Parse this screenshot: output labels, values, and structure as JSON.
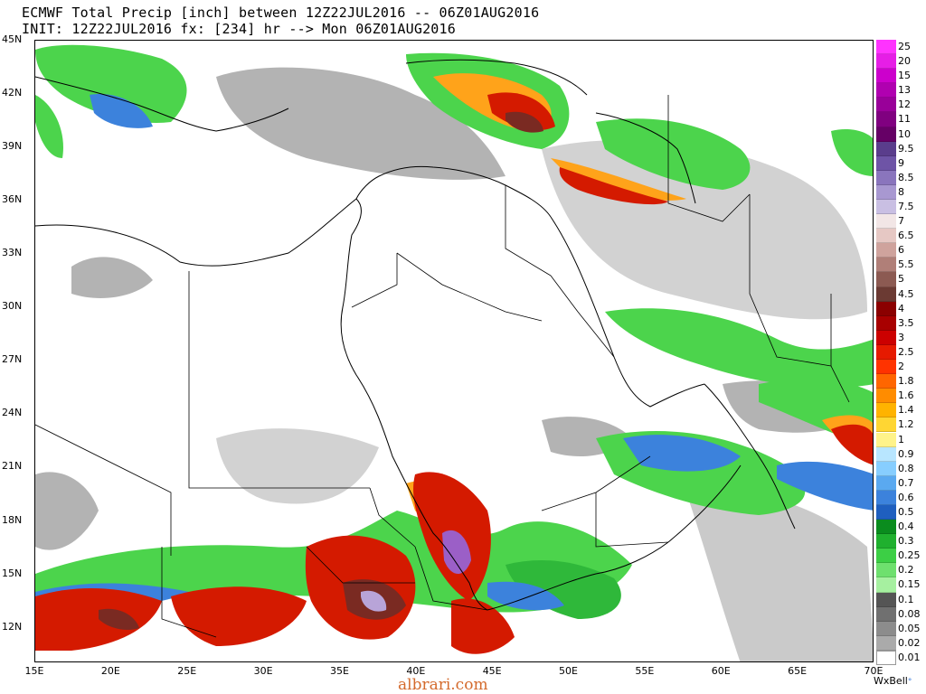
{
  "header": {
    "title_line1": "ECMWF Total Precip [inch] between 12Z22JUL2016 -- 06Z01AUG2016",
    "title_line2": "INIT: 12Z22JUL2016 fx: [234] hr --> Mon 06Z01AUG2016"
  },
  "map": {
    "lat_labels": [
      "45N",
      "42N",
      "39N",
      "36N",
      "33N",
      "30N",
      "27N",
      "24N",
      "21N",
      "18N",
      "15N",
      "12N"
    ],
    "lon_labels": [
      "15E",
      "20E",
      "25E",
      "30E",
      "35E",
      "40E",
      "45E",
      "50E",
      "55E",
      "60E",
      "65E",
      "70E"
    ],
    "extent": {
      "lon_min": 15,
      "lon_max": 70,
      "lat_min": 10,
      "lat_max": 45
    }
  },
  "legend": {
    "unit": "inch",
    "entries": [
      {
        "label": "25",
        "color": "#ff33ff"
      },
      {
        "label": "20",
        "color": "#e61ee6"
      },
      {
        "label": "15",
        "color": "#cc00cc"
      },
      {
        "label": "13",
        "color": "#b000b0"
      },
      {
        "label": "12",
        "color": "#990099"
      },
      {
        "label": "11",
        "color": "#800080"
      },
      {
        "label": "10",
        "color": "#660066"
      },
      {
        "label": "9.5",
        "color": "#5a3d8c"
      },
      {
        "label": "9",
        "color": "#6e54a6"
      },
      {
        "label": "8.5",
        "color": "#8a75bd"
      },
      {
        "label": "8",
        "color": "#a898d1"
      },
      {
        "label": "7.5",
        "color": "#c9bfe3"
      },
      {
        "label": "7",
        "color": "#f2e6e6"
      },
      {
        "label": "6.5",
        "color": "#e6c8c4"
      },
      {
        "label": "6",
        "color": "#cfa39d"
      },
      {
        "label": "5.5",
        "color": "#b07f78"
      },
      {
        "label": "5",
        "color": "#8c5a52"
      },
      {
        "label": "4.5",
        "color": "#6b3a33"
      },
      {
        "label": "4",
        "color": "#8b0000"
      },
      {
        "label": "3.5",
        "color": "#a80000"
      },
      {
        "label": "3",
        "color": "#cc0000"
      },
      {
        "label": "2.5",
        "color": "#e61a00"
      },
      {
        "label": "2",
        "color": "#ff3300"
      },
      {
        "label": "1.8",
        "color": "#ff6600"
      },
      {
        "label": "1.6",
        "color": "#ff8c00"
      },
      {
        "label": "1.4",
        "color": "#ffb300"
      },
      {
        "label": "1.2",
        "color": "#ffd633"
      },
      {
        "label": "1",
        "color": "#fff38a"
      },
      {
        "label": "0.9",
        "color": "#b8e6ff"
      },
      {
        "label": "0.8",
        "color": "#87ceff"
      },
      {
        "label": "0.7",
        "color": "#5aa9f0"
      },
      {
        "label": "0.6",
        "color": "#3c82dc"
      },
      {
        "label": "0.5",
        "color": "#1f5fbf"
      },
      {
        "label": "0.4",
        "color": "#0a8c1e"
      },
      {
        "label": "0.3",
        "color": "#1fb02e"
      },
      {
        "label": "0.25",
        "color": "#3ccf45"
      },
      {
        "label": "0.2",
        "color": "#6ee06e"
      },
      {
        "label": "0.15",
        "color": "#a6f0a0"
      },
      {
        "label": "0.1",
        "color": "#555555"
      },
      {
        "label": "0.08",
        "color": "#707070"
      },
      {
        "label": "0.05",
        "color": "#8c8c8c"
      },
      {
        "label": "0.02",
        "color": "#aaaaaa"
      },
      {
        "label": "0.01",
        "color": "#ffffff"
      }
    ]
  },
  "footer": {
    "brand": "WxBell",
    "watermark": "albrari.com"
  }
}
